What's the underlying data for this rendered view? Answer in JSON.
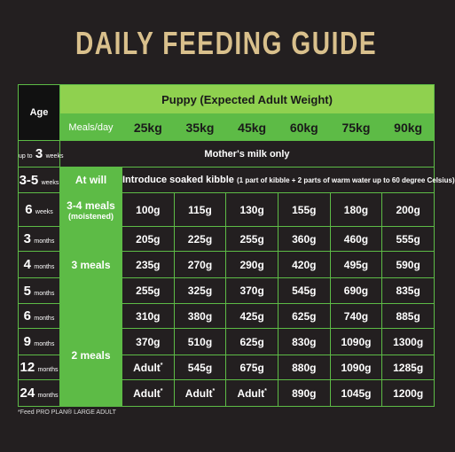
{
  "title": "DAILY FEEDING GUIDE",
  "table": {
    "age_header": "Age",
    "group_header": "Puppy (Expected Adult Weight)",
    "meals_header": "Meals/day",
    "weights": [
      "25kg",
      "35kg",
      "45kg",
      "60kg",
      "75kg",
      "90kg"
    ],
    "rows": [
      {
        "age": {
          "prefix": "up to",
          "num": "3",
          "unit": "weeks"
        },
        "note": "Mother's milk only"
      },
      {
        "age": {
          "num": "3-5",
          "unit": "weeks"
        },
        "meals": {
          "text": "At will"
        },
        "note": "Introduce soaked kibble",
        "note_detail": "(1 part of kibble + 2 parts of warm water up to 60 degree Celsius)"
      },
      {
        "age": {
          "num": "6",
          "unit": "weeks"
        },
        "meals": {
          "text": "3-4 meals",
          "detail": "(moistened)"
        },
        "cells": [
          "100g",
          "115g",
          "130g",
          "155g",
          "180g",
          "200g"
        ]
      },
      {
        "age": {
          "num": "3",
          "unit": "months"
        },
        "meals": {
          "text": "3 meals"
        },
        "cells": [
          "205g",
          "225g",
          "255g",
          "360g",
          "460g",
          "555g"
        ]
      },
      {
        "age": {
          "num": "4",
          "unit": "months"
        },
        "cells": [
          "235g",
          "270g",
          "290g",
          "420g",
          "495g",
          "590g"
        ]
      },
      {
        "age": {
          "num": "5",
          "unit": "months"
        },
        "cells": [
          "255g",
          "325g",
          "370g",
          "545g",
          "690g",
          "835g"
        ]
      },
      {
        "age": {
          "num": "6",
          "unit": "months"
        },
        "meals": {
          "text": "2 meals"
        },
        "cells": [
          "310g",
          "380g",
          "425g",
          "625g",
          "740g",
          "885g"
        ]
      },
      {
        "age": {
          "num": "9",
          "unit": "months"
        },
        "cells": [
          "370g",
          "510g",
          "625g",
          "830g",
          "1090g",
          "1300g"
        ]
      },
      {
        "age": {
          "num": "12",
          "unit": "months"
        },
        "cells": [
          {
            "text": "Adult",
            "sup": "*"
          },
          "545g",
          "675g",
          "880g",
          "1090g",
          "1285g"
        ]
      },
      {
        "age": {
          "num": "24",
          "unit": "months"
        },
        "cells": [
          {
            "text": "Adult",
            "sup": "*"
          },
          {
            "text": "Adult",
            "sup": "*"
          },
          {
            "text": "Adult",
            "sup": "*"
          },
          "890g",
          "1045g",
          "1200g"
        ]
      }
    ]
  },
  "footnote": "*Feed PRO PLAN® LARGE ADULT"
}
